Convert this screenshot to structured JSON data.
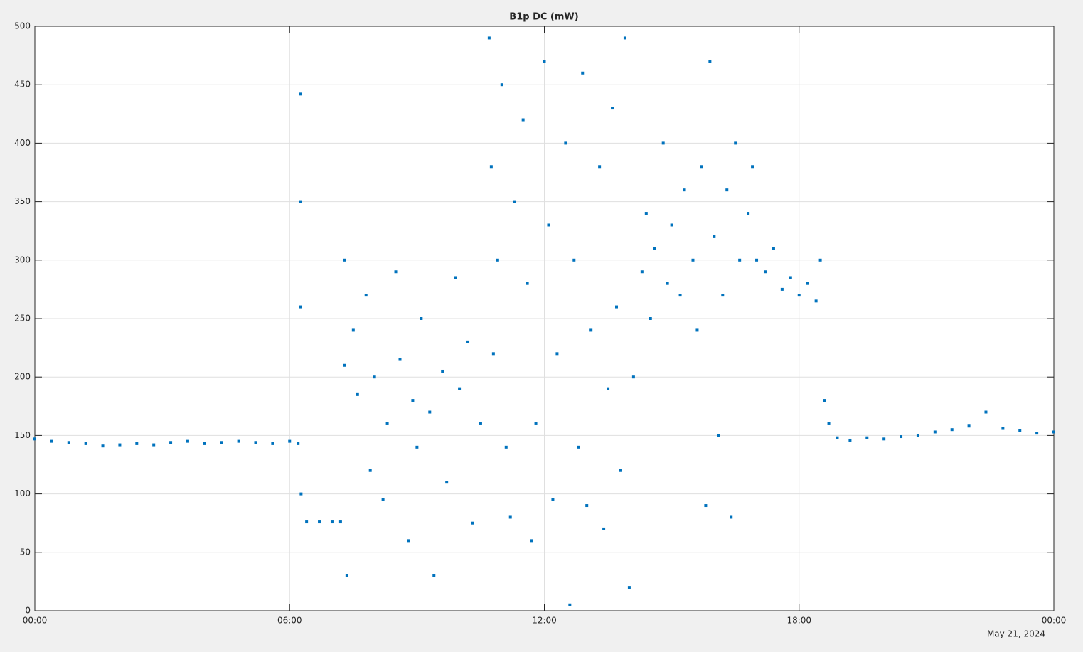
{
  "chart_data": {
    "type": "scatter",
    "title": "B1p DC (mW)",
    "x_date_label": "May 21, 2024",
    "color": "#0072bd",
    "grid": true,
    "xlim": [
      0,
      24
    ],
    "ylim": [
      0,
      500
    ],
    "xticks": [
      {
        "value": 0,
        "label": "00:00"
      },
      {
        "value": 6,
        "label": "06:00"
      },
      {
        "value": 12,
        "label": "12:00"
      },
      {
        "value": 18,
        "label": "18:00"
      },
      {
        "value": 24,
        "label": "00:00"
      }
    ],
    "yticks": [
      0,
      50,
      100,
      150,
      200,
      250,
      300,
      350,
      400,
      450,
      500
    ],
    "x": [
      0,
      0.4,
      0.8,
      1.2,
      1.6,
      2.0,
      2.4,
      2.8,
      3.2,
      3.6,
      4.0,
      4.4,
      4.8,
      5.2,
      5.6,
      6.0,
      6.2,
      6.25,
      6.25,
      6.25,
      6.27,
      6.4,
      6.7,
      7.0,
      7.2,
      7.3,
      7.3,
      7.35,
      7.5,
      7.6,
      7.8,
      7.9,
      8.0,
      8.2,
      8.3,
      8.5,
      8.6,
      8.8,
      8.9,
      9.0,
      9.1,
      9.3,
      9.4,
      9.6,
      9.7,
      9.9,
      10.0,
      10.2,
      10.3,
      10.5,
      10.7,
      10.75,
      10.8,
      10.9,
      11.0,
      11.1,
      11.2,
      11.3,
      11.5,
      11.6,
      11.7,
      11.8,
      12.0,
      12.1,
      12.2,
      12.3,
      12.5,
      12.6,
      12.7,
      12.8,
      12.9,
      13.0,
      13.1,
      13.3,
      13.4,
      13.5,
      13.6,
      13.7,
      13.8,
      13.9,
      14.0,
      14.1,
      14.3,
      14.4,
      14.5,
      14.6,
      14.8,
      14.9,
      15.0,
      15.2,
      15.3,
      15.5,
      15.6,
      15.7,
      15.8,
      15.9,
      16.0,
      16.1,
      16.2,
      16.3,
      16.4,
      16.5,
      16.6,
      16.8,
      16.9,
      17.0,
      17.2,
      17.4,
      17.6,
      17.8,
      18.0,
      18.2,
      18.4,
      18.5,
      18.6,
      18.7,
      18.9,
      19.2,
      19.6,
      20.0,
      20.4,
      20.8,
      21.2,
      21.6,
      22.0,
      22.4,
      22.8,
      23.2,
      23.6,
      24.0
    ],
    "values": [
      147,
      145,
      144,
      143,
      141,
      142,
      143,
      142,
      144,
      145,
      143,
      144,
      145,
      144,
      143,
      145,
      143,
      442,
      350,
      260,
      100,
      76,
      76,
      76,
      76,
      300,
      210,
      30,
      240,
      185,
      270,
      120,
      200,
      95,
      160,
      290,
      215,
      60,
      180,
      140,
      250,
      170,
      30,
      205,
      110,
      285,
      190,
      230,
      75,
      160,
      490,
      380,
      220,
      300,
      450,
      140,
      80,
      350,
      420,
      280,
      60,
      160,
      470,
      330,
      95,
      220,
      400,
      5,
      300,
      140,
      460,
      90,
      240,
      380,
      70,
      190,
      430,
      260,
      120,
      490,
      20,
      200,
      290,
      340,
      250,
      310,
      400,
      280,
      330,
      270,
      360,
      300,
      240,
      380,
      90,
      470,
      320,
      150,
      270,
      360,
      80,
      400,
      300,
      340,
      380,
      300,
      290,
      310,
      275,
      285,
      270,
      280,
      265,
      300,
      180,
      160,
      148,
      146,
      148,
      147,
      149,
      150,
      153,
      155,
      158,
      170,
      156,
      154,
      152,
      153
    ]
  }
}
